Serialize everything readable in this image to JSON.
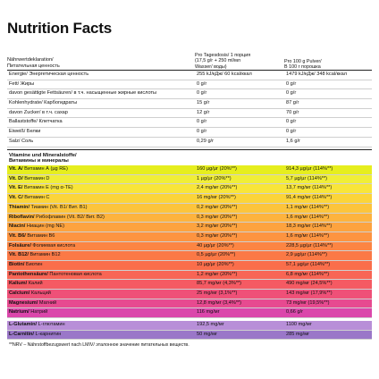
{
  "title": "Nutrition Facts",
  "header": {
    "col0_de": "Nährwertdeklaration/",
    "col0_ru": "Питательная ценность",
    "col1_l1": "Pro Tagesdosis/ 1 порция",
    "col1_l2": "(17,5 g/г + 250 ml/мл",
    "col1_l3": "Wasser/ воды)",
    "col2_l1": "Pro 100 g Pulver/",
    "col2_l2": "В 100 г порошка"
  },
  "nutrients": [
    {
      "name": "Energie/ Энергетическая ценность",
      "v1": "255 kJ/кДж/ 60 kcal/ккал",
      "v2": "1479 kJ/кДж/ 348 kcal/ккал",
      "color": "#ffffff"
    },
    {
      "name": "Fett/ Жиры",
      "v1": "0 g/г",
      "v2": "0 g/г",
      "color": "#ffffff"
    },
    {
      "name": "davon gesättigte Fettsäuren/ в т.ч. насыщенные жирные кислоты",
      "v1": "0 g/г",
      "v2": "0 g/г",
      "color": "#ffffff"
    },
    {
      "name": "Kohlenhydrate/ Карбогидраты",
      "v1": "15 g/г",
      "v2": "87 g/г",
      "color": "#ffffff"
    },
    {
      "name": "davon Zucker/ в т.ч. сахар",
      "v1": "12 g/г",
      "v2": "70 g/г",
      "color": "#ffffff"
    },
    {
      "name": "Ballaststoffe/ Клетчатка",
      "v1": "0 g/г",
      "v2": "0 g/г",
      "color": "#ffffff"
    },
    {
      "name": "Eiweiß/ Белки",
      "v1": "0 g/г",
      "v2": "0 g/г",
      "color": "#ffffff"
    },
    {
      "name": "Salz/ Соль",
      "v1": "0,29 g/г",
      "v2": "1,6 g/г",
      "color": "#ffffff"
    }
  ],
  "vitamins_header": {
    "de": "Vitamine und Mineralstoffe/",
    "ru": "Витамины и минералы"
  },
  "vitamins": [
    {
      "bold": "Vit. A/",
      "rest": " Витамин А (µg RE)",
      "v1": "160 µg/µг (20%**)",
      "v2": "914,3 µg/µг (114%**)",
      "color": "#e6ee1e"
    },
    {
      "bold": "Vit. D/",
      "rest": " Витамин D",
      "v1": "1 µg/µг (20%**)",
      "v2": "5,7 µg/µг (114%**)",
      "color": "#f0ee38"
    },
    {
      "bold": "Vit. E/",
      "rest": " Витамин Е (mg α-TE)",
      "v1": "2,4 mg/мг (20%**)",
      "v2": "13,7 mg/мг (114%**)",
      "color": "#f8e53a"
    },
    {
      "bold": "Vit. C/",
      "rest": " Витамин С",
      "v1": "16 mg/мг (20%**)",
      "v2": "91,4 mg/мг (114%**)",
      "color": "#fbd43a"
    },
    {
      "bold": "Thiamin/",
      "rest": " Тиамин (Vit. B1/ Вит. В1)",
      "v1": "0,2 mg/мг (20%**)",
      "v2": "1,1 mg/мг (114%**)",
      "color": "#fcc43c"
    },
    {
      "bold": "Riboflavin/",
      "rest": " Рибофлавин (Vit. B2/ Вит. В2)",
      "v1": "0,3 mg/мг (20%**)",
      "v2": "1,6 mg/мг (114%**)",
      "color": "#fdb33e"
    },
    {
      "bold": "Niacin/",
      "rest": " Ниацин (mg NE)",
      "v1": "3,2 mg/мг (20%**)",
      "v2": "18,3 mg/мг (114%**)",
      "color": "#fda33f"
    },
    {
      "bold": "Vit. B6/",
      "rest": " Витамин В6",
      "v1": "0,3 mg/мг (20%**)",
      "v2": "1,6 mg/мг (114%**)",
      "color": "#fd9440"
    },
    {
      "bold": "Folsäure/",
      "rest": " Фолиевая кислота",
      "v1": "40 µg/µг (20%**)",
      "v2": "228,5 µg/µг (114%**)",
      "color": "#fc8543"
    },
    {
      "bold": "Vit. B12/",
      "rest": " Витамин В12",
      "v1": "0,5 µg/µг (20%**)",
      "v2": "2,9 µg/µг (114%**)",
      "color": "#fb7946"
    },
    {
      "bold": "Biotin/",
      "rest": " Биотин",
      "v1": "10 µg/µг (20%**)",
      "v2": "57,1 µg/µг (114%**)",
      "color": "#fa6e4b"
    },
    {
      "bold": "Pantothensäure/",
      "rest": " Пантотеновая кислота",
      "v1": "1,2 mg/мг (20%**)",
      "v2": "6,8 mg/мг (114%**)",
      "color": "#f86555"
    },
    {
      "bold": "Kalium/",
      "rest": " Калий",
      "v1": "85,7 mg/мг (4,3%**)",
      "v2": "490 mg/мг (24,5%**)",
      "color": "#f55a63"
    },
    {
      "bold": "Calcium/",
      "rest": " Кальций",
      "v1": "25 mg/мг (3,1%**)",
      "v2": "143 mg/мг (17,9%**)",
      "color": "#ef5078"
    },
    {
      "bold": "Magnesium/",
      "rest": " Магний",
      "v1": "12,8 mg/мг (3,4%**)",
      "v2": "73 mg/мг (19,5%**)",
      "color": "#e74a90"
    },
    {
      "bold": "Natrium/",
      "rest": " Натрий",
      "v1": "116 mg/мг",
      "v2": "0,66 g/г",
      "color": "#db47ab"
    }
  ],
  "amino": [
    {
      "bold": "L-Glutamin/",
      "rest": " L-глютамин",
      "v1": "192,5 mg/мг",
      "v2": "1100 mg/мг",
      "color": "#b88fd8"
    },
    {
      "bold": "L-Carnitin/",
      "rest": " L-карнитин",
      "v1": "50 mg/мг",
      "v2": "285 mg/мг",
      "color": "#9a77c8"
    }
  ],
  "footnote": "**NRV – Nährstoffbezugswert nach LMIV/ эталонное значение питательных веществ."
}
